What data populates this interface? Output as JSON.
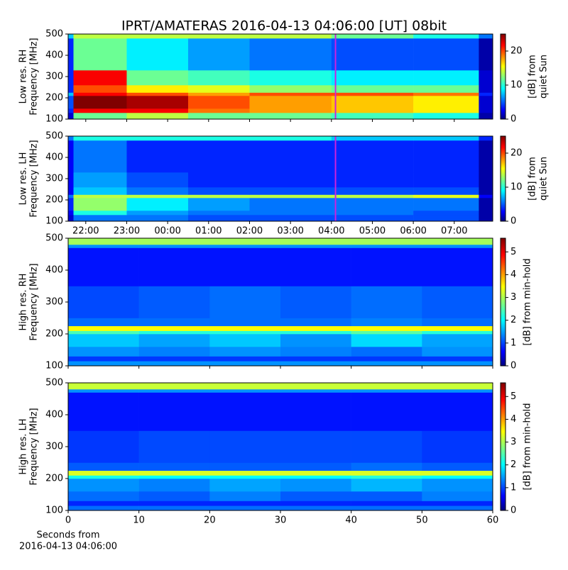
{
  "chart_data": [
    {
      "type": "heatmap",
      "title": "IPRT/AMATERAS 2016-04-13 04:06:00 [UT]   08bit",
      "ylabel": [
        "Low res. RH",
        "Frequency [MHz]"
      ],
      "cbar_label": [
        "[dB] from",
        "quiet Sun"
      ],
      "xlim": [
        -2.43,
        7.94
      ],
      "xticks": [
        -2,
        -1,
        0,
        1,
        2,
        3,
        4,
        5,
        6,
        7
      ],
      "tick_labels": false,
      "ylim": [
        100,
        500
      ],
      "yticks": [
        100,
        200,
        300,
        400,
        500
      ],
      "clim": [
        0,
        25
      ],
      "cticks": [
        0,
        10,
        20
      ],
      "colormap": "jet",
      "marker": 4.1,
      "marker_color": "#cc22dd",
      "x_edges": [
        -2.43,
        -2.3,
        -1,
        0.5,
        2,
        4,
        6,
        7.6,
        7.94
      ],
      "y_edges": [
        100,
        130,
        150,
        210,
        225,
        260,
        330,
        480,
        500
      ],
      "z": [
        [
          2,
          12,
          14,
          12,
          12,
          11,
          10,
          1
        ],
        [
          4,
          22,
          22,
          19,
          18,
          17,
          16,
          2
        ],
        [
          5,
          25,
          24,
          20,
          18,
          17,
          16,
          2
        ],
        [
          8,
          22,
          20,
          18,
          20,
          20,
          19,
          4
        ],
        [
          4,
          20,
          16,
          15,
          13,
          12,
          12,
          2
        ],
        [
          4,
          22,
          12,
          11,
          10,
          9,
          9,
          2
        ],
        [
          4,
          12,
          9,
          7,
          6,
          5,
          5,
          1
        ],
        [
          8,
          14,
          14,
          14,
          14,
          12,
          10,
          6
        ]
      ]
    },
    {
      "type": "heatmap",
      "ylabel": [
        "Low res. LH",
        "Frequency [MHz]"
      ],
      "cbar_label": [
        "[dB] from",
        "quiet Sun"
      ],
      "xlim": [
        -2.43,
        7.94
      ],
      "xticks": [
        {
          "value": -2,
          "label": "22:00"
        },
        {
          "value": -1,
          "label": "23:00"
        },
        {
          "value": 0,
          "label": "00:00"
        },
        {
          "value": 1,
          "label": "01:00"
        },
        {
          "value": 2,
          "label": "02:00"
        },
        {
          "value": 3,
          "label": "03:00"
        },
        {
          "value": 4,
          "label": "04:00"
        },
        {
          "value": 5,
          "label": "05:00"
        },
        {
          "value": 6,
          "label": "06:00"
        },
        {
          "value": 7,
          "label": "07:00"
        }
      ],
      "tick_labels": true,
      "ylim": [
        100,
        500
      ],
      "yticks": [
        100,
        200,
        300,
        400,
        500
      ],
      "clim": [
        0,
        25
      ],
      "cticks": [
        0,
        10,
        20
      ],
      "colormap": "jet",
      "marker": 4.1,
      "marker_color": "#cc22dd",
      "x_edges": [
        -2.43,
        -2.3,
        -1,
        0.5,
        2,
        4,
        6,
        7.6,
        7.94
      ],
      "y_edges": [
        100,
        130,
        150,
        210,
        225,
        260,
        330,
        480,
        500
      ],
      "z": [
        [
          2,
          6,
          6,
          5,
          5,
          5,
          5,
          1
        ],
        [
          3,
          10,
          7,
          6,
          6,
          6,
          5,
          1
        ],
        [
          4,
          13,
          9,
          7,
          6,
          6,
          6,
          1
        ],
        [
          6,
          14,
          14,
          14,
          14,
          14,
          15,
          3
        ],
        [
          3,
          8,
          6,
          5,
          5,
          5,
          5,
          1
        ],
        [
          3,
          7,
          5,
          4,
          4,
          4,
          4,
          1
        ],
        [
          3,
          6,
          4,
          4,
          4,
          4,
          4,
          1
        ],
        [
          6,
          10,
          10,
          10,
          10,
          8,
          8,
          4
        ]
      ]
    },
    {
      "type": "heatmap",
      "ylabel": [
        "High res. RH",
        "Frequency [MHz]"
      ],
      "cbar_label": [
        "[dB] from min-hold"
      ],
      "xlim": [
        0,
        60
      ],
      "xticks": [
        0,
        10,
        20,
        30,
        40,
        50,
        60
      ],
      "tick_labels": false,
      "ylim": [
        100,
        500
      ],
      "yticks": [
        100,
        200,
        300,
        400,
        500
      ],
      "clim": [
        0,
        5.6
      ],
      "cticks": [
        0,
        1,
        2,
        3,
        4,
        5
      ],
      "colormap": "jet",
      "x_edges": [
        0,
        10,
        20,
        30,
        40,
        50,
        60
      ],
      "y_edges": [
        100,
        115,
        130,
        160,
        200,
        210,
        225,
        250,
        350,
        470,
        480,
        500
      ],
      "z": [
        [
          1.5,
          1.5,
          1.5,
          1.5,
          1.5,
          1.5
        ],
        [
          1,
          1,
          1,
          1,
          1,
          1
        ],
        [
          1.5,
          1.4,
          1.5,
          1.4,
          1.3,
          1.5
        ],
        [
          1.8,
          1.6,
          1.8,
          1.5,
          1.9,
          1.6
        ],
        [
          2.5,
          2.3,
          2.3,
          2.3,
          2.6,
          2.3
        ],
        [
          3.5,
          3.5,
          3.5,
          3.5,
          3.5,
          3.5
        ],
        [
          1.3,
          1.3,
          1.3,
          1.3,
          1.4,
          1.3
        ],
        [
          1.1,
          1.2,
          1.3,
          1.2,
          1.3,
          1.2
        ],
        [
          0.8,
          0.8,
          0.8,
          0.8,
          0.8,
          0.8
        ],
        [
          1.5,
          1.5,
          1.5,
          1.5,
          1.5,
          1.5
        ],
        [
          3,
          3,
          3,
          3,
          3,
          3
        ]
      ]
    },
    {
      "type": "heatmap",
      "ylabel": [
        "High res. LH",
        "Frequency [MHz]"
      ],
      "cbar_label": [
        "[dB] from min-hold"
      ],
      "xlabel": [
        "Seconds from",
        "2016-04-13 04:06:00"
      ],
      "xlim": [
        0,
        60
      ],
      "xticks": [
        0,
        10,
        20,
        30,
        40,
        50,
        60
      ],
      "tick_labels": true,
      "ylim": [
        100,
        500
      ],
      "yticks": [
        100,
        200,
        300,
        400,
        500
      ],
      "clim": [
        0,
        5.6
      ],
      "cticks": [
        0,
        1,
        2,
        3,
        4,
        5
      ],
      "colormap": "jet",
      "x_edges": [
        0,
        10,
        20,
        30,
        40,
        50,
        60
      ],
      "y_edges": [
        100,
        115,
        130,
        160,
        200,
        210,
        225,
        250,
        350,
        470,
        480,
        500
      ],
      "z": [
        [
          1.3,
          1.3,
          1.3,
          1.3,
          1.3,
          1.3
        ],
        [
          0.9,
          0.9,
          0.9,
          0.9,
          0.9,
          0.9
        ],
        [
          1.3,
          1.2,
          1.4,
          1.2,
          1.2,
          1.4
        ],
        [
          1.5,
          1.4,
          1.6,
          1.5,
          1.7,
          1.5
        ],
        [
          2.2,
          2.1,
          2.1,
          2.1,
          2.3,
          2.1
        ],
        [
          3.3,
          3.3,
          3.3,
          3.3,
          3.3,
          3.3
        ],
        [
          1.2,
          1.2,
          1.2,
          1.2,
          1.3,
          1.2
        ],
        [
          1.0,
          1.1,
          1.1,
          1.1,
          1.1,
          1.0
        ],
        [
          0.8,
          0.8,
          0.8,
          0.8,
          0.8,
          0.8
        ],
        [
          1.5,
          1.5,
          1.5,
          1.5,
          1.5,
          1.5
        ],
        [
          3.2,
          3.2,
          3.2,
          3.2,
          3.2,
          3.2
        ]
      ]
    }
  ]
}
